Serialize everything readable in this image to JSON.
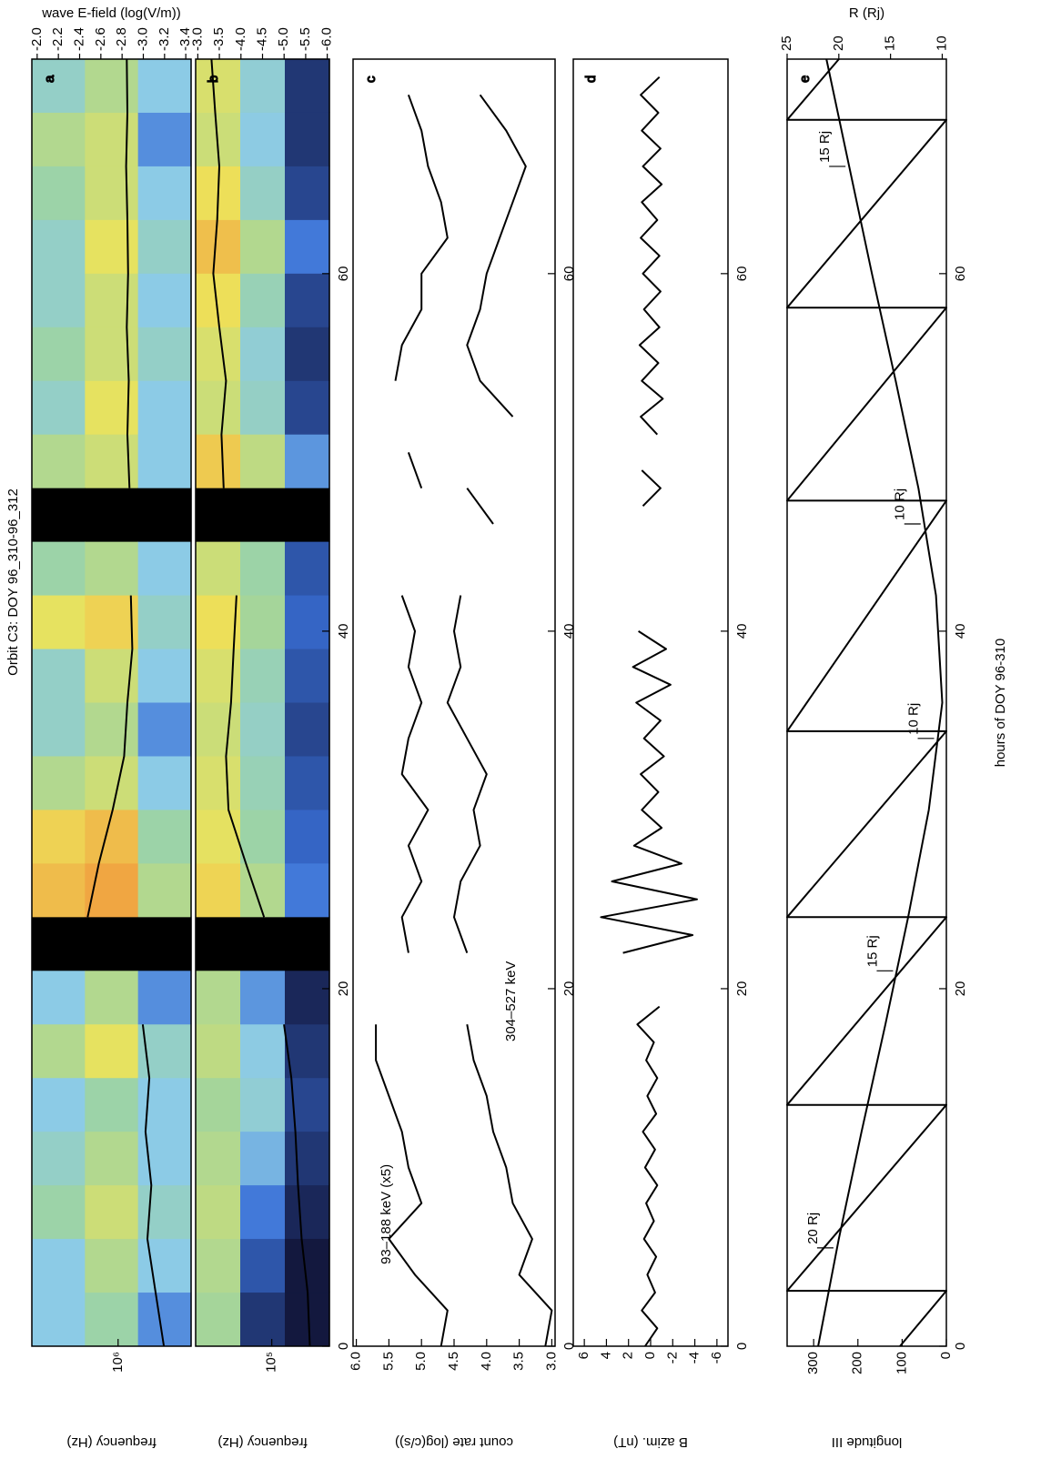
{
  "chart_data": [
    {
      "type": "spectrogram",
      "label": "a",
      "title": "Orbit C3: DOY 96_310-96_312",
      "ylabel": "frequency (Hz)",
      "y_scale": "log",
      "ylim": [
        280000,
        4500000
      ],
      "yticks": [
        {
          "value": 1000000,
          "label": "10⁶"
        }
      ],
      "y2label": "wave E-field (log(V/m))",
      "y2lim": [
        -3.45,
        -1.95
      ],
      "y2ticks": [
        {
          "value": -2,
          "label": "-2.0"
        },
        -2.2,
        -2.4,
        -2.6,
        -2.8,
        {
          "value": -3,
          "label": "-3.0"
        },
        -3.2,
        -3.4
      ],
      "xlim": [
        0,
        72
      ],
      "x_bins": [
        0,
        3,
        6,
        9,
        12,
        15,
        18,
        21,
        24,
        27,
        30,
        33,
        36,
        39,
        42,
        45,
        48,
        51,
        54,
        57,
        60,
        63,
        66,
        69,
        72
      ],
      "z": [
        [
          -3.0,
          -3.0,
          -2.8,
          -2.9,
          -3.0,
          -2.7,
          -3.0,
          null,
          -2.3,
          -2.4,
          -2.7,
          -2.9,
          -2.9,
          -2.5,
          -2.8,
          null,
          -2.7,
          -2.9,
          -2.8,
          -2.9,
          -2.9,
          -2.8,
          -2.7,
          -2.9
        ],
        [
          -2.8,
          -2.7,
          -2.6,
          -2.7,
          -2.8,
          -2.5,
          -2.7,
          null,
          -2.2,
          -2.3,
          -2.6,
          -2.7,
          -2.6,
          -2.4,
          -2.7,
          null,
          -2.6,
          -2.5,
          -2.6,
          -2.6,
          -2.5,
          -2.6,
          -2.6,
          -2.7
        ],
        [
          -3.1,
          -3.0,
          -2.9,
          -3.0,
          -3.0,
          -2.9,
          -3.1,
          null,
          -2.7,
          -2.8,
          -3.0,
          -3.1,
          -3.0,
          -2.9,
          -3.0,
          null,
          -3.0,
          -3.0,
          -2.9,
          -3.0,
          -2.9,
          -3.0,
          -3.1,
          -3.0
        ]
      ],
      "series": [
        {
          "color": "#000000",
          "x": [
            0,
            3,
            6,
            9,
            12,
            15,
            18,
            21,
            24,
            27,
            30,
            33,
            36,
            39,
            42,
            45,
            48,
            51,
            54,
            57,
            60,
            63,
            66,
            69,
            72
          ],
          "values": [
            450000,
            520000,
            600000,
            560000,
            620000,
            580000,
            650000,
            null,
            1700000,
            1400000,
            1100000,
            900000,
            850000,
            780000,
            800000,
            null,
            820000,
            850000,
            830000,
            860000,
            840000,
            850000,
            870000,
            850000,
            860000
          ]
        }
      ]
    },
    {
      "type": "spectrogram",
      "label": "b",
      "ylabel": "frequency (Hz)",
      "y_scale": "log",
      "ylim": [
        35000,
        400000
      ],
      "yticks": [
        {
          "value": 100000,
          "label": "10⁵"
        }
      ],
      "y2lim": [
        -6.05,
        -2.95
      ],
      "y2ticks": [
        {
          "value": -3,
          "label": "-3.0"
        },
        -3.5,
        {
          "value": -4,
          "label": "-4.0"
        },
        -4.5,
        {
          "value": -5,
          "label": "-5.0"
        },
        -5.5,
        {
          "value": -6,
          "label": "-6.0"
        }
      ],
      "xlim": [
        0,
        72
      ],
      "xticks": [
        0,
        20,
        40,
        60
      ],
      "x_bins": [
        0,
        3,
        6,
        9,
        12,
        15,
        18,
        21,
        24,
        27,
        30,
        33,
        36,
        39,
        42,
        45,
        48,
        51,
        54,
        57,
        60,
        63,
        66,
        69,
        72
      ],
      "z": [
        [
          -4.6,
          -4.5,
          -4.4,
          -4.5,
          -4.6,
          -4.4,
          -4.5,
          null,
          -3.9,
          -4.1,
          -4.2,
          -4.3,
          -4.2,
          -4.0,
          -4.3,
          null,
          -3.8,
          -4.3,
          -4.2,
          -4.0,
          -3.7,
          -4.0,
          -4.3,
          -4.2
        ],
        [
          -5.8,
          -5.6,
          -5.4,
          -5.2,
          -5.0,
          -5.1,
          -5.3,
          null,
          -4.5,
          -4.7,
          -4.8,
          -4.9,
          -4.8,
          -4.6,
          -4.7,
          null,
          -4.4,
          -4.9,
          -5.0,
          -4.8,
          -4.5,
          -4.9,
          -5.1,
          -5.0
        ],
        [
          -6.0,
          -6.0,
          -5.9,
          -5.8,
          -5.7,
          -5.8,
          -5.9,
          null,
          -5.4,
          -5.5,
          -5.6,
          -5.7,
          -5.6,
          -5.5,
          -5.6,
          null,
          -5.3,
          -5.7,
          -5.8,
          -5.7,
          -5.4,
          -5.7,
          -5.8,
          -5.8
        ]
      ],
      "series": [
        {
          "color": "#000000",
          "x": [
            0,
            3,
            6,
            9,
            12,
            15,
            18,
            21,
            24,
            27,
            30,
            33,
            36,
            39,
            42,
            45,
            48,
            51,
            54,
            57,
            60,
            63,
            66,
            69,
            72
          ],
          "values": [
            50000,
            52000,
            58000,
            62000,
            65000,
            70000,
            80000,
            null,
            115000,
            160000,
            220000,
            230000,
            210000,
            200000,
            190000,
            null,
            240000,
            250000,
            230000,
            260000,
            290000,
            270000,
            260000,
            280000,
            300000
          ]
        }
      ]
    },
    {
      "type": "line",
      "label": "c",
      "ylabel": "count rate (log(c/s))",
      "ylim": [
        2.95,
        6.05
      ],
      "yticks": [
        {
          "value": 6,
          "label": "6.0"
        },
        5.5,
        {
          "value": 5,
          "label": "5.0"
        },
        4.5,
        {
          "value": 4,
          "label": "4.0"
        },
        3.5,
        {
          "value": 3,
          "label": "3.0"
        }
      ],
      "xlim": [
        0,
        72
      ],
      "xticks": [
        0,
        20,
        40,
        60
      ],
      "series": [
        {
          "name": "93–188 keV (x5)",
          "color": "#000000",
          "x": [
            0,
            2,
            4,
            6,
            8,
            10,
            12,
            14,
            16,
            18,
            20,
            22,
            24,
            26,
            28,
            30,
            32,
            34,
            36,
            38,
            40,
            42,
            44,
            46,
            48,
            50,
            52,
            54,
            56,
            58,
            60,
            62,
            64,
            66,
            68,
            70,
            72
          ],
          "values": [
            4.7,
            4.6,
            5.1,
            5.5,
            5.0,
            5.2,
            5.3,
            5.5,
            5.7,
            5.7,
            null,
            5.2,
            5.3,
            5.0,
            5.2,
            4.9,
            5.3,
            5.2,
            5.0,
            5.2,
            5.1,
            5.3,
            null,
            null,
            5.0,
            5.2,
            null,
            5.4,
            5.3,
            5.0,
            5.0,
            4.6,
            4.7,
            4.9,
            5.0,
            5.2,
            null
          ]
        },
        {
          "name": "304–527 keV",
          "color": "#000000",
          "x": [
            0,
            2,
            4,
            6,
            8,
            10,
            12,
            14,
            16,
            18,
            20,
            22,
            24,
            26,
            28,
            30,
            32,
            34,
            36,
            38,
            40,
            42,
            44,
            46,
            48,
            50,
            52,
            54,
            56,
            58,
            60,
            62,
            64,
            66,
            68,
            70,
            72
          ],
          "values": [
            3.1,
            3.0,
            3.5,
            3.3,
            3.6,
            3.7,
            3.9,
            4.0,
            4.2,
            4.3,
            null,
            4.3,
            4.5,
            4.4,
            4.1,
            4.2,
            4.0,
            4.3,
            4.6,
            4.4,
            4.5,
            4.4,
            null,
            3.9,
            4.3,
            null,
            3.6,
            4.1,
            4.3,
            4.1,
            4.0,
            3.8,
            3.6,
            3.4,
            3.7,
            4.1,
            null
          ]
        }
      ]
    },
    {
      "type": "line",
      "label": "d",
      "ylabel": "B azim. (nT)",
      "ylim": [
        -7,
        7
      ],
      "yticks": [
        6,
        4,
        2,
        0,
        -2,
        -4,
        -6
      ],
      "xlim": [
        0,
        72
      ],
      "xticks": [
        0,
        20,
        40,
        60
      ],
      "series": [
        {
          "color": "#000000",
          "x": [
            0,
            1,
            2,
            3,
            4,
            5,
            6,
            7,
            8,
            9,
            10,
            11,
            12,
            13,
            14,
            15,
            16,
            17,
            18,
            19,
            20,
            21,
            22,
            23,
            24,
            25,
            26,
            27,
            28,
            29,
            30,
            31,
            32,
            33,
            34,
            35,
            36,
            37,
            38,
            39,
            40,
            41,
            42,
            43,
            44,
            45,
            46,
            47,
            48,
            49,
            50,
            51,
            52,
            53,
            54,
            55,
            56,
            57,
            58,
            59,
            60,
            61,
            62,
            63,
            64,
            65,
            66,
            67,
            68,
            69,
            70,
            71,
            72
          ],
          "values": [
            0.5,
            -0.6,
            0.8,
            -0.4,
            0.3,
            -0.5,
            0.6,
            -0.3,
            0.4,
            -0.6,
            0.5,
            -0.4,
            0.7,
            -0.5,
            0.3,
            -0.6,
            0.4,
            -0.3,
            1.2,
            -0.8,
            null,
            null,
            2.5,
            -3.8,
            4.5,
            -4.2,
            3.5,
            -2.8,
            1.5,
            -1.0,
            0.8,
            -0.7,
            0.9,
            -1.2,
            0.6,
            -0.9,
            1.3,
            -1.8,
            1.6,
            -1.4,
            1.1,
            null,
            null,
            null,
            null,
            null,
            null,
            0.7,
            -0.9,
            0.8,
            null,
            -0.6,
            0.9,
            -1.1,
            0.8,
            -0.7,
            1.0,
            -0.8,
            0.6,
            -0.9,
            0.7,
            -0.8,
            0.9,
            -0.6,
            0.8,
            -1.0,
            0.7,
            -0.9,
            0.8,
            -0.7,
            0.9,
            -0.8,
            null
          ]
        }
      ]
    },
    {
      "type": "line",
      "label": "e",
      "ylabel": "longitude III",
      "xlabel": "hours of DOY 96-310",
      "ylim": [
        0,
        360
      ],
      "yticks": [
        0,
        100,
        200,
        300
      ],
      "y2label": "R (Rj)",
      "y2lim": [
        9.6,
        25
      ],
      "y2ticks": [
        10,
        15,
        20,
        25
      ],
      "xlim": [
        0,
        72
      ],
      "xticks": [
        0,
        20,
        40,
        60
      ],
      "series": [
        {
          "color": "#000000",
          "x": [
            0,
            3.1,
            3.1,
            13.5,
            13.5,
            24.0,
            24.0,
            34.4,
            34.4,
            47.3,
            47.3,
            58.1,
            58.1,
            68.6,
            68.6,
            72
          ],
          "values": [
            105,
            0,
            360,
            0,
            360,
            0,
            360,
            0,
            360,
            0,
            360,
            0,
            360,
            0,
            360,
            243
          ]
        },
        {
          "color": "#000000",
          "axis": "y2",
          "x": [
            0,
            6,
            12,
            18,
            24,
            30,
            36,
            42,
            48,
            54,
            60,
            66,
            72
          ],
          "values": [
            22,
            20,
            17.8,
            15.5,
            13.3,
            11.3,
            10.0,
            10.6,
            12.3,
            14.5,
            16.8,
            19.0,
            21.2
          ]
        }
      ],
      "annotations": [
        {
          "text": "20 Rj",
          "x": 5.5
        },
        {
          "text": "15 Rj",
          "x": 21
        },
        {
          "text": "10 Rj",
          "x": 34
        },
        {
          "text": "10 Rj",
          "x": 46
        },
        {
          "text": "15 Rj",
          "x": 66
        }
      ]
    }
  ]
}
